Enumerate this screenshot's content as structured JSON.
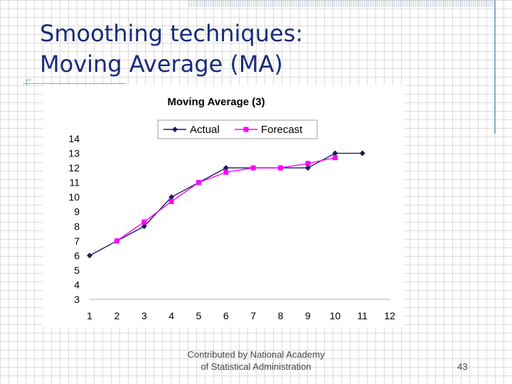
{
  "slide": {
    "title_line1": "Smoothing techniques:",
    "title_line2": "Moving Average (MA)",
    "footer_line1": "Contributed by National Academy",
    "footer_line2": "of Statistical Administration",
    "page_number": "43"
  },
  "chart_data": {
    "type": "line",
    "title": "Moving Average (3)",
    "xlabel": "",
    "ylabel": "",
    "x": [
      1,
      2,
      3,
      4,
      5,
      6,
      7,
      8,
      9,
      10,
      11,
      12
    ],
    "xlim": [
      1,
      12
    ],
    "ylim": [
      3,
      14
    ],
    "yticks": [
      3,
      4,
      5,
      6,
      7,
      8,
      9,
      10,
      11,
      12,
      13,
      14
    ],
    "grid": false,
    "legend_position": "top",
    "series": [
      {
        "name": "Actual",
        "color": "#1a1a5e",
        "marker": "diamond",
        "values": [
          6,
          7,
          8,
          10,
          11,
          12,
          12,
          12,
          12,
          13,
          13,
          null
        ]
      },
      {
        "name": "Forecast",
        "color": "#ff00ff",
        "marker": "square",
        "values": [
          null,
          7,
          8.3,
          9.7,
          11,
          11.7,
          12,
          12,
          12.3,
          12.7,
          null,
          null
        ]
      }
    ]
  }
}
